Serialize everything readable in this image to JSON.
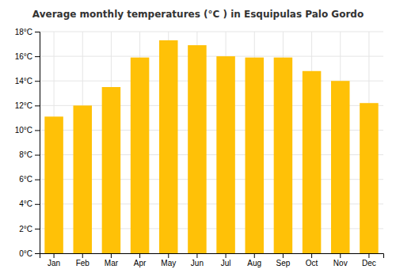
{
  "chart_data": {
    "type": "bar",
    "title": "Average monthly temperatures (°C ) in Esquipulas Palo Gordo",
    "categories": [
      "Jan",
      "Feb",
      "Mar",
      "Apr",
      "May",
      "Jun",
      "Jul",
      "Aug",
      "Sep",
      "Oct",
      "Nov",
      "Dec"
    ],
    "values": [
      11.1,
      12.0,
      13.5,
      15.9,
      17.3,
      16.9,
      16.0,
      15.9,
      15.9,
      14.8,
      14.0,
      12.2
    ],
    "color": "#FFC107",
    "ylim": [
      0,
      18
    ],
    "yticks": [
      {
        "value": 0,
        "label": "0°C"
      },
      {
        "value": 2,
        "label": "2°C"
      },
      {
        "value": 4,
        "label": "4°C"
      },
      {
        "value": 6,
        "label": "6°C"
      },
      {
        "value": 8,
        "label": "8°C"
      },
      {
        "value": 10,
        "label": "10°C"
      },
      {
        "value": 12,
        "label": "12°C"
      },
      {
        "value": 14,
        "label": "14°C"
      },
      {
        "value": 16,
        "label": "16°C"
      },
      {
        "value": 18,
        "label": "18°C"
      }
    ],
    "grid": true
  }
}
